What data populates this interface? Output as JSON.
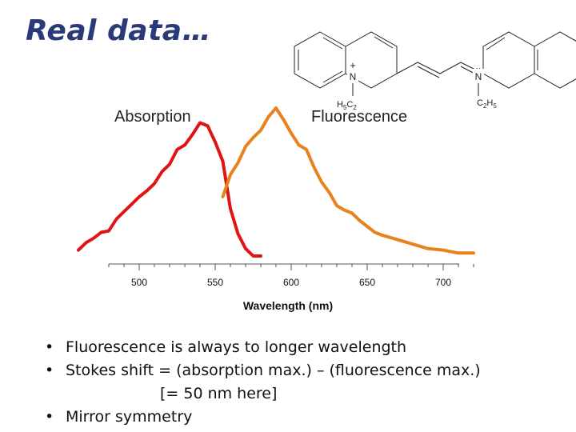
{
  "slide": {
    "title": "Real data…",
    "bullets": [
      "Fluorescence is always to longer wavelength",
      "Stokes shift = (absorption max.) – (fluorescence max.)",
      "[= 50 nm here]",
      "Mirror symmetry"
    ]
  },
  "molecule": {
    "left_nitrogen": "N",
    "left_charge": "+",
    "right_nitrogen": "N",
    "right_dots": "··",
    "left_substituent": "H5C2",
    "right_substituent": "C2H5"
  },
  "chart_data": {
    "type": "line",
    "xlabel": "Wavelength (nm)",
    "ylabel": "",
    "xlim": [
      460,
      760
    ],
    "ylim": [
      0,
      1
    ],
    "xticks": [
      500,
      550,
      600,
      650,
      700
    ],
    "xtick_labels": [
      "500",
      "550",
      "600",
      "650",
      "700"
    ],
    "grid": false,
    "series": [
      {
        "name": "Absorption",
        "color": "#e01414",
        "x": [
          460,
          465,
          470,
          475,
          480,
          485,
          490,
          495,
          500,
          505,
          510,
          515,
          520,
          525,
          530,
          535,
          540,
          545,
          550,
          555,
          560,
          565,
          570,
          575,
          580
        ],
        "y": [
          0.04,
          0.09,
          0.12,
          0.16,
          0.17,
          0.25,
          0.3,
          0.35,
          0.4,
          0.44,
          0.49,
          0.57,
          0.62,
          0.72,
          0.75,
          0.82,
          0.9,
          0.88,
          0.77,
          0.64,
          0.32,
          0.15,
          0.05,
          0.0,
          0.0
        ]
      },
      {
        "name": "Fluorescence",
        "color": "#e8821e",
        "x": [
          555,
          560,
          565,
          570,
          575,
          580,
          585,
          590,
          595,
          600,
          605,
          610,
          615,
          620,
          625,
          630,
          635,
          640,
          645,
          650,
          655,
          660,
          670,
          680,
          690,
          700,
          710,
          720
        ],
        "y": [
          0.4,
          0.55,
          0.63,
          0.74,
          0.8,
          0.85,
          0.94,
          1.0,
          0.92,
          0.83,
          0.75,
          0.72,
          0.6,
          0.5,
          0.43,
          0.34,
          0.31,
          0.29,
          0.24,
          0.2,
          0.16,
          0.14,
          0.11,
          0.08,
          0.05,
          0.04,
          0.02,
          0.02
        ]
      }
    ],
    "annotations": [
      "Absorption",
      "Fluorescence"
    ]
  }
}
